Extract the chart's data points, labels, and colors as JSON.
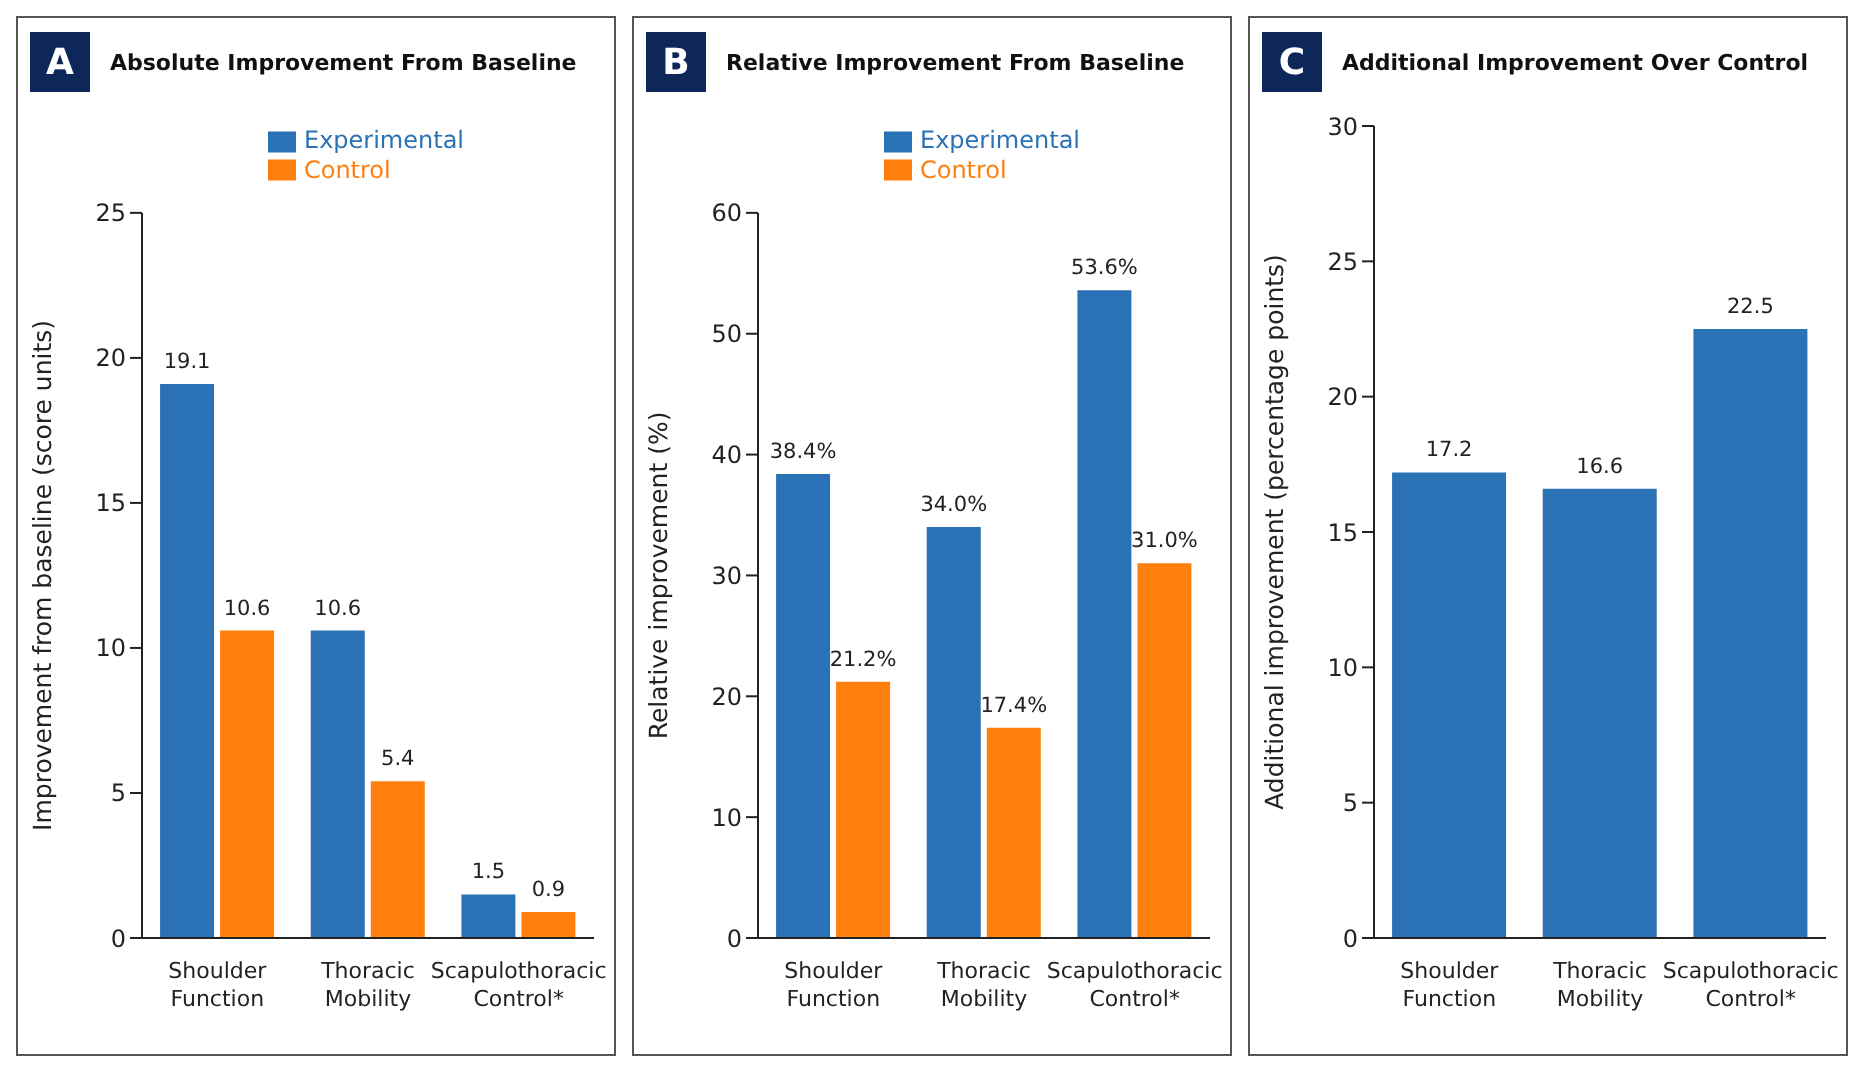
{
  "chart_data": [
    {
      "type": "bar",
      "title": "Absolute Improvement From Baseline",
      "annotations": [
        "A"
      ],
      "ylabel": "Improvement from baseline (score units)",
      "categories": [
        "Shoulder Function",
        "Thoracic Mobility",
        "Scapulothoracic Control*"
      ],
      "series": [
        {
          "name": "Experimental",
          "color": "#2a72b5",
          "values": [
            19.1,
            10.6,
            1.5
          ]
        },
        {
          "name": "Control",
          "color": "#ff7f0e",
          "values": [
            10.6,
            5.4,
            0.9
          ]
        }
      ],
      "ylim": [
        0,
        25
      ],
      "yticks": [
        0,
        5,
        10,
        15,
        20,
        25
      ],
      "data_labels": true,
      "legend": "top",
      "grid": false
    },
    {
      "type": "bar",
      "title": "Relative Improvement From Baseline",
      "annotations": [
        "B"
      ],
      "ylabel": "Relative improvement (%)",
      "categories": [
        "Shoulder Function",
        "Thoracic Mobility",
        "Scapulothoracic Control*"
      ],
      "series": [
        {
          "name": "Experimental",
          "color": "#2a72b5",
          "values": [
            38.4,
            34.0,
            53.6
          ],
          "value_labels": [
            "38.4%",
            "34.0%",
            "53.6%"
          ]
        },
        {
          "name": "Control",
          "color": "#ff7f0e",
          "values": [
            21.2,
            17.4,
            31.0
          ],
          "value_labels": [
            "21.2%",
            "17.4%",
            "31.0%"
          ]
        }
      ],
      "ylim": [
        0,
        60
      ],
      "yticks": [
        0,
        10,
        20,
        30,
        40,
        50,
        60
      ],
      "legend": "top",
      "grid": false
    },
    {
      "type": "bar",
      "title": "Additional Improvement Over Control",
      "annotations": [
        "C"
      ],
      "ylabel": "Additional improvement (percentage points)",
      "categories": [
        "Shoulder Function",
        "Thoracic Mobility",
        "Scapulothoracic Control*"
      ],
      "values": [
        17.2,
        16.6,
        22.5
      ],
      "color": "#2a72b5",
      "ylim": [
        0,
        30
      ],
      "yticks": [
        0,
        5,
        10,
        15,
        20,
        25,
        30
      ],
      "data_labels": true,
      "grid": false
    }
  ]
}
